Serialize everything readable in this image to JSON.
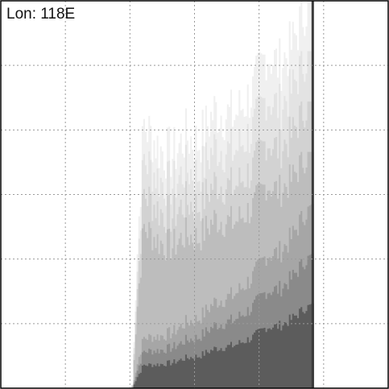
{
  "label": "Lon: 118E",
  "chart_data": {
    "type": "area",
    "title": "",
    "xlabel": "",
    "ylabel": "",
    "grid": true,
    "grid_style": "dotted",
    "xlim": [
      0,
      6
    ],
    "ylim": [
      0,
      6
    ],
    "data_x_range": [
      2,
      4.85
    ],
    "colors": [
      "#f0f0f0",
      "#e3e3e3",
      "#d2d2d2",
      "#bdbdbd",
      "#a6a6a6",
      "#8a8a8a",
      "#5c5c5c"
    ],
    "tallest_layer_top_profile": [
      [
        2.0,
        0.0
      ],
      [
        2.2,
        4.1
      ],
      [
        2.45,
        3.7
      ],
      [
        2.65,
        3.6
      ],
      [
        2.85,
        3.9
      ],
      [
        3.05,
        3.8
      ],
      [
        3.3,
        4.3
      ],
      [
        3.6,
        4.2
      ],
      [
        3.9,
        4.6
      ],
      [
        4.1,
        5.2
      ],
      [
        4.3,
        5.0
      ],
      [
        4.5,
        5.3
      ],
      [
        4.7,
        5.9
      ],
      [
        4.85,
        6.0
      ]
    ]
  }
}
